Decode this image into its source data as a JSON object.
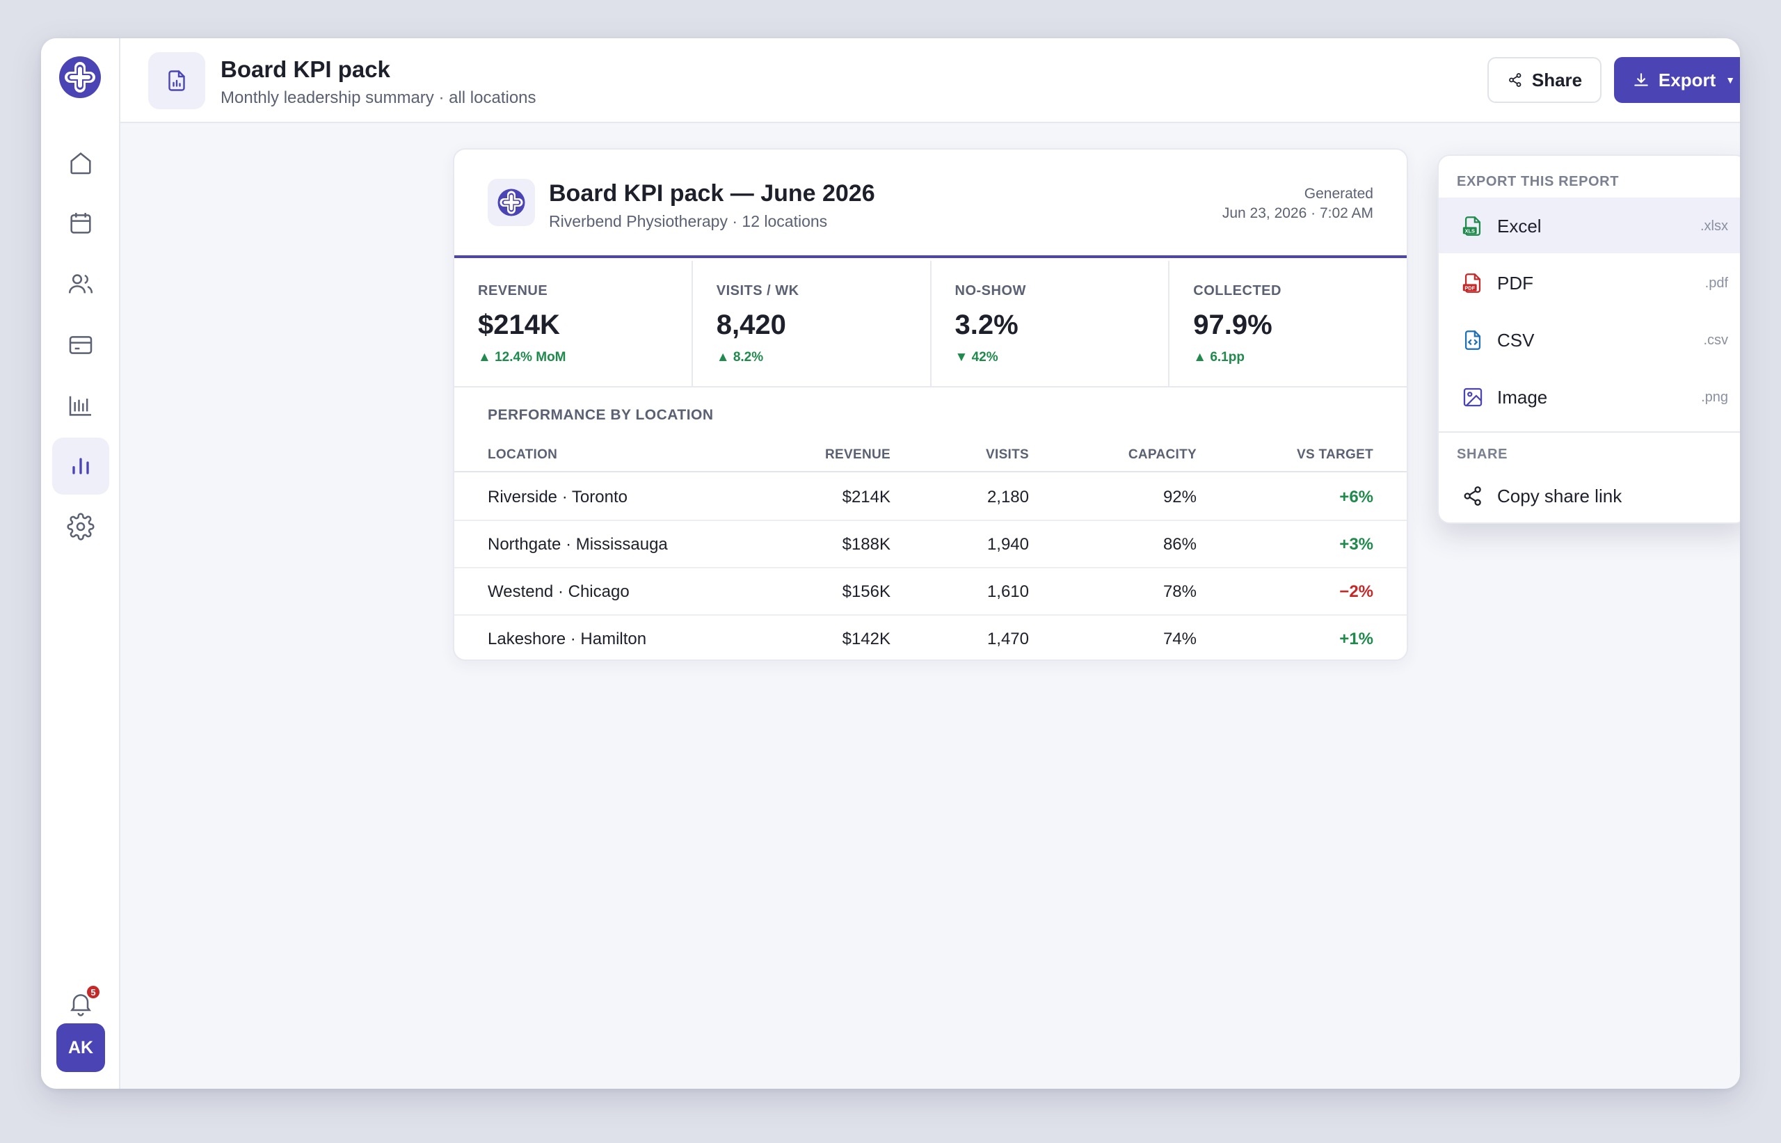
{
  "header": {
    "title": "Board KPI pack",
    "subtitle": "Monthly leadership summary · all locations",
    "share_label": "Share",
    "export_label": "Export"
  },
  "sidebar": {
    "items": [
      {
        "icon": "home-icon"
      },
      {
        "icon": "calendar-icon"
      },
      {
        "icon": "users-icon"
      },
      {
        "icon": "card-icon"
      },
      {
        "icon": "bar-chart-icon"
      },
      {
        "icon": "analytics-icon",
        "active": true
      },
      {
        "icon": "gear-icon"
      }
    ],
    "notifications_count": "5",
    "avatar_initials": "AK"
  },
  "report": {
    "title": "Board KPI pack — June 2026",
    "subtitle": "Riverbend Physiotherapy · 12 locations",
    "generated_label": "Generated",
    "generated_date": "Jun 23, 2026 · 7:02 AM",
    "kpis": [
      {
        "label": "REVENUE",
        "value": "$214K",
        "delta": "▲ 12.4% MoM"
      },
      {
        "label": "VISITS / WK",
        "value": "8,420",
        "delta": "▲ 8.2%"
      },
      {
        "label": "NO-SHOW",
        "value": "3.2%",
        "delta": "▼ 42%"
      },
      {
        "label": "COLLECTED",
        "value": "97.9%",
        "delta": "▲ 6.1pp"
      }
    ],
    "section_title": "PERFORMANCE BY LOCATION",
    "columns": [
      "LOCATION",
      "REVENUE",
      "VISITS",
      "CAPACITY",
      "VS TARGET"
    ],
    "rows": [
      {
        "location": "Riverside · Toronto",
        "revenue": "$214K",
        "visits": "2,180",
        "capacity": "92%",
        "vs_target": "+6%"
      },
      {
        "location": "Northgate · Mississauga",
        "revenue": "$188K",
        "visits": "1,940",
        "capacity": "86%",
        "vs_target": "+3%"
      },
      {
        "location": "Westend · Chicago",
        "revenue": "$156K",
        "visits": "1,610",
        "capacity": "78%",
        "vs_target": "−2%"
      },
      {
        "location": "Lakeshore · Hamilton",
        "revenue": "$142K",
        "visits": "1,470",
        "capacity": "74%",
        "vs_target": "+1%"
      }
    ]
  },
  "export_menu": {
    "heading": "EXPORT THIS REPORT",
    "items": [
      {
        "label": "Excel",
        "ext": ".xlsx",
        "icon": "excel-file-icon"
      },
      {
        "label": "PDF",
        "ext": ".pdf",
        "icon": "pdf-file-icon"
      },
      {
        "label": "CSV",
        "ext": ".csv",
        "icon": "csv-file-icon"
      },
      {
        "label": "Image",
        "ext": ".png",
        "icon": "image-icon"
      }
    ],
    "share_heading": "SHARE",
    "share_item": "Copy share link"
  },
  "colors": {
    "accent": "#4a44b5",
    "positive": "#1f8a4c",
    "negative": "#c62828"
  }
}
